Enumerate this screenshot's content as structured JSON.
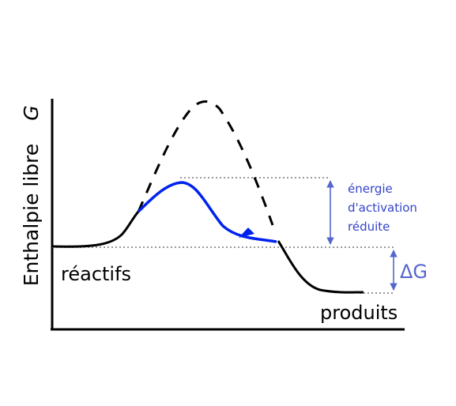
{
  "diagram": {
    "y_axis_label": "Enthalpie libre",
    "y_axis_symbol": "G",
    "reactants_label": "réactifs",
    "products_label": "produits",
    "activation_label_lines": [
      "énergie",
      "d'activation",
      "réduite"
    ],
    "delta_g_label": "ΔG",
    "colors": {
      "uncatalyzed_path": "#000000",
      "catalyzed_path": "#0022ee",
      "annotation": "#5566cc",
      "guide_lines": "#999999",
      "axes": "#000000"
    }
  }
}
